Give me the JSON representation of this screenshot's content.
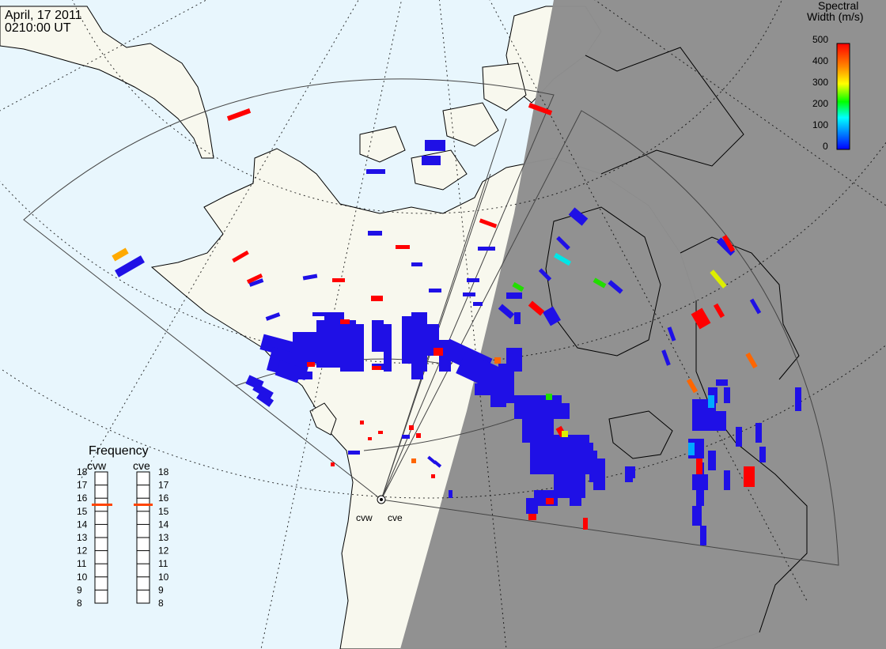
{
  "header": {
    "date": "April, 17 2011",
    "time": "0210:00 UT"
  },
  "colorbar": {
    "title_line1": "Spectral",
    "title_line2": "Width (m/s)",
    "ticks": [
      "500",
      "400",
      "300",
      "200",
      "100",
      "0"
    ],
    "colors": [
      "#0000ff",
      "#00aaff",
      "#00ffff",
      "#00ff00",
      "#ffff00",
      "#ff8800",
      "#ff0000"
    ]
  },
  "radars": {
    "west_label": "cvw",
    "east_label": "cve"
  },
  "frequency_panel": {
    "title": "Frequency",
    "col_west": "cvw",
    "col_east": "cve",
    "ticks": [
      "18",
      "17",
      "16",
      "15",
      "14",
      "13",
      "12",
      "11",
      "10",
      "9",
      "8"
    ],
    "cvw_marker_value": 15.5,
    "cve_marker_value": 15.5,
    "marker_color": "#ff4400"
  },
  "colors": {
    "ocean": "#e8f6fd",
    "land": "#f8f8ee",
    "night": "#8f8f8f",
    "scatter_main": "#1f10e6"
  }
}
